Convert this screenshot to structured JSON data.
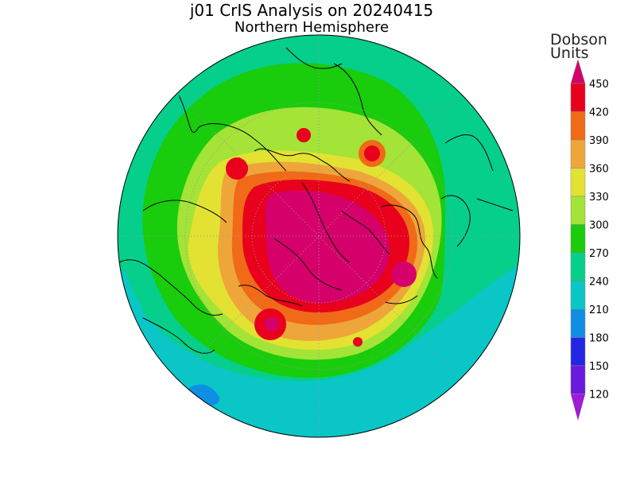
{
  "chart_data": {
    "type": "heatmap",
    "title": "j01 CrIS Analysis on 20240415",
    "subtitle": "Northern Hemisphere",
    "colorbar": {
      "unit_line1": "Dobson",
      "unit_line2": "Units",
      "ticks": [
        450,
        420,
        390,
        360,
        330,
        300,
        270,
        240,
        210,
        180,
        150,
        120
      ],
      "bins": [
        {
          "from": 450,
          "to": null,
          "color": "#d6006b"
        },
        {
          "from": 420,
          "to": 450,
          "color": "#e8001c"
        },
        {
          "from": 390,
          "to": 420,
          "color": "#f06a18"
        },
        {
          "from": 360,
          "to": 390,
          "color": "#eea63a"
        },
        {
          "from": 330,
          "to": 360,
          "color": "#e3e232"
        },
        {
          "from": 300,
          "to": 330,
          "color": "#a4e337"
        },
        {
          "from": 270,
          "to": 300,
          "color": "#19cc0c"
        },
        {
          "from": 240,
          "to": 270,
          "color": "#05cf8a"
        },
        {
          "from": 210,
          "to": 240,
          "color": "#0ac6c6"
        },
        {
          "from": 180,
          "to": 210,
          "color": "#0f8fe4"
        },
        {
          "from": 150,
          "to": 180,
          "color": "#2525e6"
        },
        {
          "from": 120,
          "to": 150,
          "color": "#6a19df"
        },
        {
          "from": null,
          "to": 120,
          "color": "#a319d9"
        }
      ]
    }
  }
}
